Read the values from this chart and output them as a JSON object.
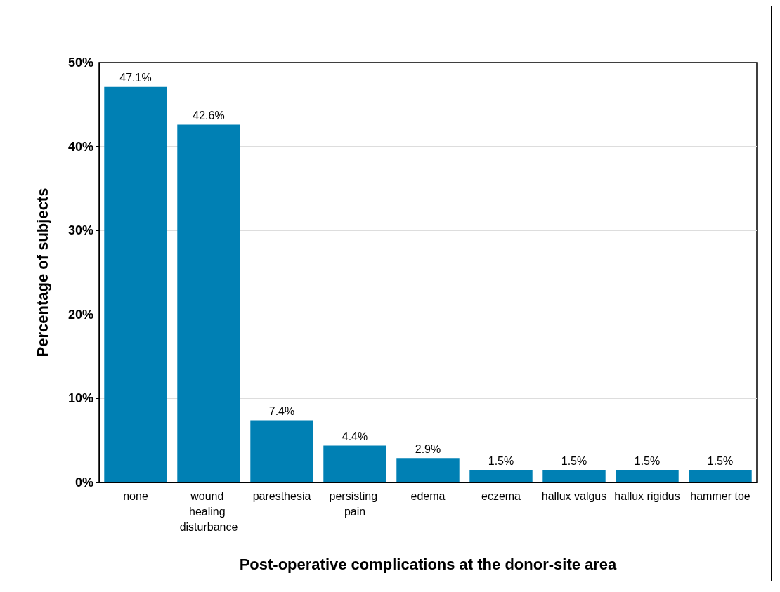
{
  "chart_data": {
    "type": "bar",
    "xlabel": "Post-operative complications at the donor-site area",
    "ylabel": "Percentage of subjects",
    "categories": [
      "none",
      "wound healing disturbance",
      "paresthesia",
      "persisting pain",
      "edema",
      "eczema",
      "hallux valgus",
      "hallux rigidus",
      "hammer toe"
    ],
    "values": [
      47.1,
      42.6,
      7.4,
      4.4,
      2.9,
      1.5,
      1.5,
      1.5,
      1.5
    ],
    "value_labels": [
      "47.1%",
      "42.6%",
      "7.4%",
      "4.4%",
      "2.9%",
      "1.5%",
      "1.5%",
      "1.5%",
      "1.5%"
    ],
    "color": "#0080b4",
    "ylim": [
      0,
      50
    ],
    "yticks": [
      {
        "value": 0,
        "label": "0%"
      },
      {
        "value": 10,
        "label": "10%"
      },
      {
        "value": 20,
        "label": "20%"
      },
      {
        "value": 30,
        "label": "30%"
      },
      {
        "value": 40,
        "label": "40%"
      },
      {
        "value": 50,
        "label": "50%"
      }
    ],
    "grid": "y"
  }
}
